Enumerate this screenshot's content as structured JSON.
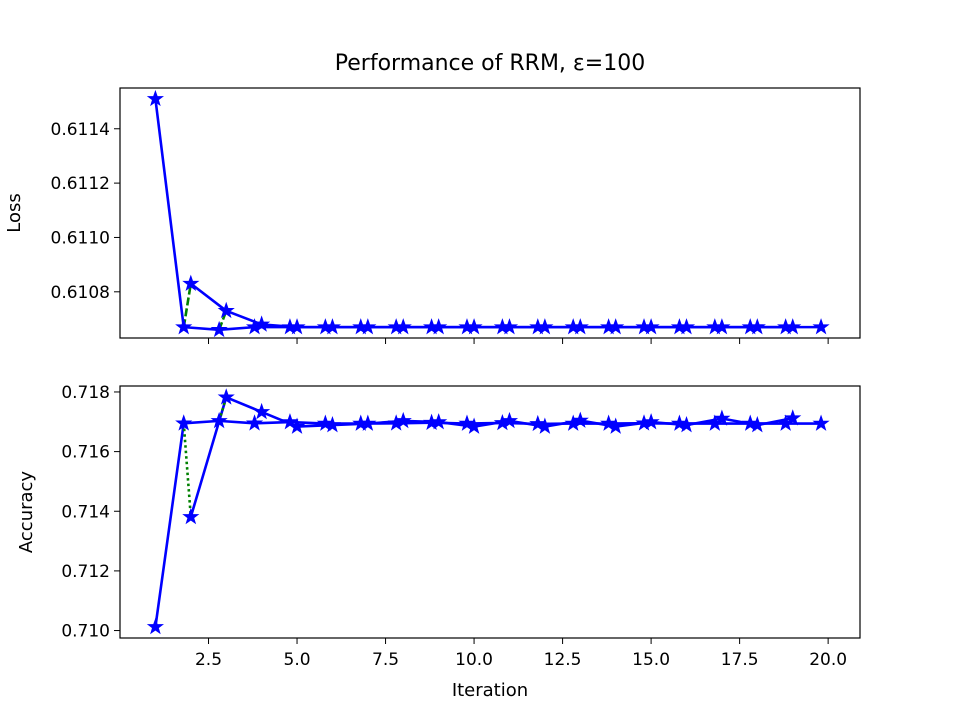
{
  "figure": {
    "title": "Performance of RRM, ε=100"
  },
  "colors": {
    "main_line": "#0000ff",
    "secondary_line": "#008000",
    "marker_fill": "#0000ff",
    "axes": "#000000"
  },
  "chart_data": [
    {
      "type": "line",
      "panel": "top",
      "title": "Performance of RRM, ε=100",
      "xlabel": "",
      "ylabel": "Loss",
      "xlim": [
        0.0,
        20.9
      ],
      "ylim": [
        0.61063,
        0.61155
      ],
      "xticks": [
        2.5,
        5.0,
        7.5,
        10.0,
        12.5,
        15.0,
        17.5,
        20.0
      ],
      "xtick_labels": [
        "",
        "",
        "",
        "",
        "",
        "",
        "",
        ""
      ],
      "yticks": [
        0.6108,
        0.611,
        0.6112,
        0.6114
      ],
      "ytick_labels": [
        "0.6108",
        "0.6110",
        "0.6112",
        "0.6114"
      ],
      "grid": false,
      "series": [
        {
          "style": "solid",
          "color": "#0000ff",
          "marker": "star",
          "points": [
            [
              1.0,
              0.61151
            ],
            [
              1.8,
              0.61067
            ],
            [
              2.8,
              0.61066
            ],
            [
              3.8,
              0.61067
            ],
            [
              4.8,
              0.61067
            ],
            [
              5.8,
              0.61067
            ],
            [
              6.8,
              0.61067
            ],
            [
              7.8,
              0.61067
            ],
            [
              8.8,
              0.61067
            ],
            [
              9.8,
              0.61067
            ],
            [
              10.8,
              0.61067
            ],
            [
              11.8,
              0.61067
            ],
            [
              12.8,
              0.61067
            ],
            [
              13.8,
              0.61067
            ],
            [
              14.8,
              0.61067
            ],
            [
              15.8,
              0.61067
            ],
            [
              16.8,
              0.61067
            ],
            [
              17.8,
              0.61067
            ],
            [
              18.8,
              0.61067
            ],
            [
              19.8,
              0.61067
            ]
          ]
        },
        {
          "style": "solid",
          "color": "#0000ff",
          "marker": "star",
          "points": [
            [
              2.0,
              0.61083
            ],
            [
              3.0,
              0.61073
            ],
            [
              4.0,
              0.61068
            ],
            [
              5.0,
              0.61067
            ],
            [
              6.0,
              0.61067
            ],
            [
              7.0,
              0.61067
            ],
            [
              8.0,
              0.61067
            ],
            [
              9.0,
              0.61067
            ],
            [
              10.0,
              0.61067
            ],
            [
              11.0,
              0.61067
            ],
            [
              12.0,
              0.61067
            ],
            [
              13.0,
              0.61067
            ],
            [
              14.0,
              0.61067
            ],
            [
              15.0,
              0.61067
            ],
            [
              16.0,
              0.61067
            ],
            [
              17.0,
              0.61067
            ],
            [
              18.0,
              0.61067
            ],
            [
              19.0,
              0.61067
            ]
          ]
        },
        {
          "style": "dashed",
          "color": "#008000",
          "marker": "none",
          "points": [
            [
              1.8,
              0.61067
            ],
            [
              2.0,
              0.61083
            ]
          ]
        },
        {
          "style": "dashed",
          "color": "#008000",
          "marker": "none",
          "points": [
            [
              2.8,
              0.61066
            ],
            [
              3.0,
              0.61073
            ]
          ]
        }
      ]
    },
    {
      "type": "line",
      "panel": "bottom",
      "title": "",
      "xlabel": "Iteration",
      "ylabel": "Accuracy",
      "xlim": [
        0.0,
        20.9
      ],
      "ylim": [
        0.70975,
        0.7182
      ],
      "xticks": [
        2.5,
        5.0,
        7.5,
        10.0,
        12.5,
        15.0,
        17.5,
        20.0
      ],
      "xtick_labels": [
        "2.5",
        "5.0",
        "7.5",
        "10.0",
        "12.5",
        "15.0",
        "17.5",
        "20.0"
      ],
      "yticks": [
        0.71,
        0.712,
        0.714,
        0.716,
        0.718
      ],
      "ytick_labels": [
        "0.710",
        "0.712",
        "0.714",
        "0.716",
        "0.718"
      ],
      "grid": false,
      "series": [
        {
          "style": "solid",
          "color": "#0000ff",
          "marker": "star",
          "points": [
            [
              1.0,
              0.71012
            ],
            [
              1.8,
              0.71695
            ],
            [
              2.8,
              0.71703
            ],
            [
              3.8,
              0.71695
            ],
            [
              4.8,
              0.71699
            ],
            [
              5.8,
              0.71694
            ],
            [
              6.8,
              0.71694
            ],
            [
              7.8,
              0.71695
            ],
            [
              8.8,
              0.71697
            ],
            [
              9.8,
              0.71694
            ],
            [
              10.8,
              0.71696
            ],
            [
              11.8,
              0.71693
            ],
            [
              12.8,
              0.71694
            ],
            [
              13.8,
              0.71694
            ],
            [
              14.8,
              0.71695
            ],
            [
              15.8,
              0.71694
            ],
            [
              16.8,
              0.71694
            ],
            [
              17.8,
              0.71694
            ],
            [
              18.8,
              0.71694
            ],
            [
              19.8,
              0.71694
            ]
          ]
        },
        {
          "style": "solid",
          "color": "#0000ff",
          "marker": "star",
          "points": [
            [
              2.0,
              0.71381
            ],
            [
              3.0,
              0.71782
            ],
            [
              4.0,
              0.71733
            ],
            [
              5.0,
              0.71684
            ],
            [
              6.0,
              0.71689
            ],
            [
              7.0,
              0.71694
            ],
            [
              8.0,
              0.71703
            ],
            [
              9.0,
              0.71699
            ],
            [
              10.0,
              0.71684
            ],
            [
              11.0,
              0.71703
            ],
            [
              12.0,
              0.71684
            ],
            [
              13.0,
              0.71704
            ],
            [
              14.0,
              0.71684
            ],
            [
              15.0,
              0.71699
            ],
            [
              16.0,
              0.71689
            ],
            [
              17.0,
              0.71711
            ],
            [
              18.0,
              0.71689
            ],
            [
              19.0,
              0.71712
            ]
          ]
        },
        {
          "style": "dotted",
          "color": "#008000",
          "marker": "none",
          "points": [
            [
              1.8,
              0.71695
            ],
            [
              2.0,
              0.71381
            ]
          ]
        },
        {
          "style": "dotted",
          "color": "#008000",
          "marker": "none",
          "points": [
            [
              2.8,
              0.71703
            ],
            [
              3.0,
              0.71782
            ]
          ]
        }
      ]
    }
  ]
}
